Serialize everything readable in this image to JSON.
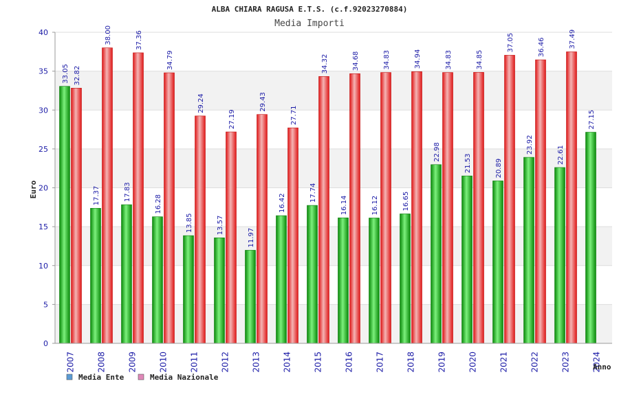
{
  "chart_data": {
    "type": "bar",
    "title": "ALBA CHIARA RAGUSA E.T.S. (c.f.92023270884)",
    "subtitle": "Media Importi",
    "xlabel": "Anno",
    "ylabel": "Euro",
    "ylim": [
      0,
      40
    ],
    "yticks": [
      0,
      5,
      10,
      15,
      20,
      25,
      30,
      35,
      40
    ],
    "grid": true,
    "legend_position": "bottom-left",
    "categories": [
      "2007",
      "2008",
      "2009",
      "2010",
      "2011",
      "2012",
      "2013",
      "2014",
      "2015",
      "2016",
      "2017",
      "2018",
      "2019",
      "2020",
      "2021",
      "2022",
      "2023",
      "2024"
    ],
    "series": [
      {
        "name": "Media Ente",
        "color": "#1ab81a",
        "legend_color": "#5b9bd5",
        "values": [
          33.05,
          17.37,
          17.83,
          16.28,
          13.85,
          13.57,
          11.97,
          16.42,
          17.74,
          16.14,
          16.12,
          16.65,
          22.98,
          21.53,
          20.89,
          23.92,
          22.61,
          27.15
        ],
        "labels": [
          "33.05",
          "17.37",
          "17.83",
          "16.28",
          "13.85",
          "13.57",
          "11.97",
          "16.42",
          "17.74",
          "16.14",
          "16.12",
          "16.65",
          "22.98",
          "21.53",
          "20.89",
          "23.92",
          "22.61",
          "27.15"
        ]
      },
      {
        "name": "Media Nazionale",
        "color": "#e8202a",
        "legend_color": "#e088b8",
        "values": [
          32.82,
          38.0,
          37.36,
          34.79,
          29.24,
          27.19,
          29.43,
          27.71,
          34.32,
          34.68,
          34.83,
          34.94,
          34.83,
          34.85,
          37.05,
          36.46,
          37.49,
          null
        ],
        "labels": [
          "32.82",
          "38.00",
          "37.36",
          "34.79",
          "29.24",
          "27.19",
          "29.43",
          "27.71",
          "34.32",
          "34.68",
          "34.83",
          "34.94",
          "34.83",
          "34.85",
          "37.05",
          "36.46",
          "37.49",
          ""
        ]
      }
    ]
  }
}
